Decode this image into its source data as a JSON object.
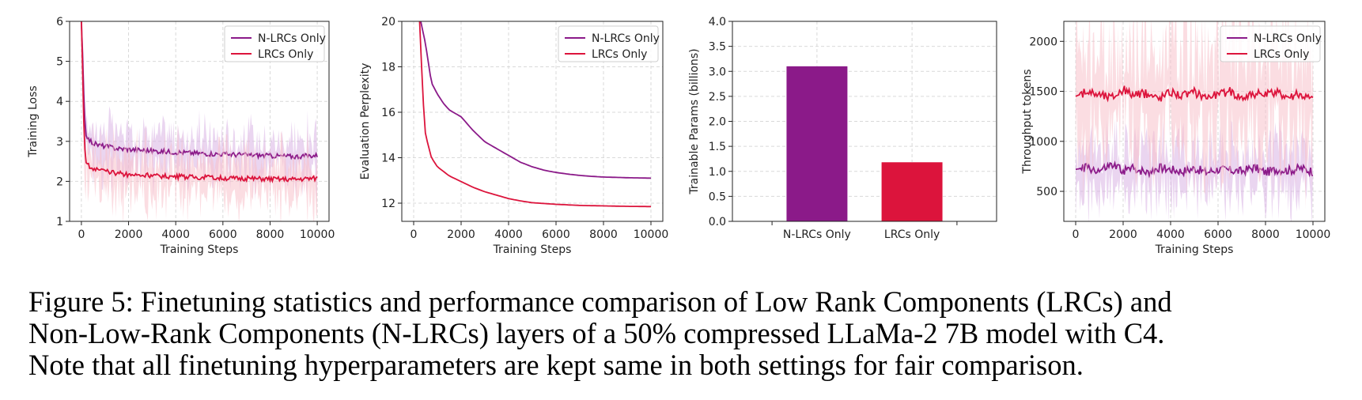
{
  "caption": "Figure 5: Finetuning statistics and performance comparison of Low Rank Components (LRCs) and\nNon-Low-Rank Components (N-LRCs) layers of a 50% compressed LLaMa-2 7B model with C4.\nNote that all finetuning hyperparameters are kept same in both settings for fair comparison.",
  "colors": {
    "n_lrcs": "#8b1a89",
    "lrcs": "#dc143c",
    "n_lrcs_band": "#d9b3e3",
    "lrcs_band": "#f7c1cb",
    "grid": "#d9d9d9"
  },
  "chart_data": [
    {
      "type": "line",
      "id": "training-loss",
      "xlabel": "Training Steps",
      "ylabel": "Training Loss",
      "xlim": [
        -500,
        10500
      ],
      "ylim": [
        1,
        6
      ],
      "xticks": [
        0,
        2000,
        4000,
        6000,
        8000,
        10000
      ],
      "yticks": [
        1,
        2,
        3,
        4,
        5,
        6
      ],
      "legend": "top-right",
      "grid": true,
      "series": [
        {
          "name": "N-LRCs Only",
          "color": "#8b1a89",
          "x": [
            0,
            50,
            100,
            150,
            200,
            300,
            400,
            500,
            750,
            1000,
            1500,
            2000,
            3000,
            4000,
            5000,
            6000,
            7000,
            8000,
            9000,
            10000
          ],
          "y": [
            6.0,
            5.2,
            4.2,
            3.5,
            3.2,
            3.05,
            3.0,
            2.95,
            2.9,
            2.88,
            2.82,
            2.8,
            2.76,
            2.73,
            2.7,
            2.68,
            2.66,
            2.64,
            2.62,
            2.65
          ],
          "band": [
            0.45,
            0.7
          ]
        },
        {
          "name": "LRCs Only",
          "color": "#dc143c",
          "x": [
            0,
            50,
            100,
            150,
            200,
            300,
            400,
            500,
            750,
            1000,
            1500,
            2000,
            3000,
            4000,
            5000,
            6000,
            7000,
            8000,
            9000,
            10000
          ],
          "y": [
            6.0,
            4.8,
            3.5,
            2.8,
            2.5,
            2.4,
            2.35,
            2.32,
            2.28,
            2.25,
            2.2,
            2.17,
            2.14,
            2.12,
            2.1,
            2.08,
            2.07,
            2.06,
            2.05,
            2.08
          ],
          "band": [
            0.45,
            0.8
          ]
        }
      ]
    },
    {
      "type": "line",
      "id": "eval-perplexity",
      "xlabel": "Training Steps",
      "ylabel": "Evaluation Perplexity",
      "xlim": [
        -500,
        10500
      ],
      "ylim": [
        11.2,
        20
      ],
      "xticks": [
        0,
        2000,
        4000,
        6000,
        8000,
        10000
      ],
      "yticks": [
        12,
        14,
        16,
        18,
        20
      ],
      "legend": "top-right",
      "grid": true,
      "series": [
        {
          "name": "N-LRCs Only",
          "color": "#8b1a89",
          "x": [
            300,
            500,
            750,
            1000,
            1250,
            1500,
            2000,
            2500,
            3000,
            3500,
            4000,
            4500,
            5000,
            5500,
            6000,
            6500,
            7000,
            7500,
            8000,
            9000,
            10000
          ],
          "y": [
            20.0,
            19.0,
            17.3,
            16.8,
            16.4,
            16.1,
            15.8,
            15.2,
            14.7,
            14.4,
            14.1,
            13.8,
            13.6,
            13.45,
            13.35,
            13.28,
            13.22,
            13.18,
            13.15,
            13.12,
            13.1
          ]
        },
        {
          "name": "LRCs Only",
          "color": "#dc143c",
          "x": [
            250,
            400,
            500,
            750,
            1000,
            1500,
            2000,
            2500,
            3000,
            3500,
            4000,
            4500,
            5000,
            6000,
            7000,
            8000,
            9000,
            10000
          ],
          "y": [
            20.0,
            16.5,
            15.0,
            14.0,
            13.6,
            13.2,
            12.95,
            12.7,
            12.5,
            12.35,
            12.2,
            12.1,
            12.02,
            11.95,
            11.9,
            11.88,
            11.86,
            11.85
          ]
        }
      ]
    },
    {
      "type": "bar",
      "id": "trainable-params",
      "ylabel": "Trainable Params (billions)",
      "categories": [
        "N-LRCs Only",
        "LRCs Only"
      ],
      "values": [
        3.1,
        1.18
      ],
      "colors": [
        "#8b1a89",
        "#dc143c"
      ],
      "ylim": [
        0,
        4
      ],
      "yticks": [
        0.0,
        0.5,
        1.0,
        1.5,
        2.0,
        2.5,
        3.0,
        3.5,
        4.0
      ],
      "grid": true
    },
    {
      "type": "line",
      "id": "throughput",
      "xlabel": "Training Steps",
      "ylabel": "Throughput tokens",
      "xlim": [
        -500,
        10500
      ],
      "ylim": [
        200,
        2200
      ],
      "xticks": [
        0,
        2000,
        4000,
        6000,
        8000,
        10000
      ],
      "yticks": [
        500,
        1000,
        1500,
        2000
      ],
      "legend": "top-right",
      "grid": true,
      "series": [
        {
          "name": "N-LRCs Only",
          "color": "#8b1a89",
          "x": [
            0,
            500,
            1000,
            1500,
            2000,
            2500,
            3000,
            3500,
            4000,
            4500,
            5000,
            5500,
            6000,
            6500,
            7000,
            7500,
            8000,
            8500,
            9000,
            9500,
            10000
          ],
          "y": [
            720,
            740,
            700,
            760,
            710,
            730,
            690,
            740,
            720,
            700,
            730,
            690,
            720,
            710,
            700,
            740,
            690,
            720,
            710,
            730,
            700
          ],
          "band": [
            250,
            300
          ]
        },
        {
          "name": "LRCs Only",
          "color": "#dc143c",
          "x": [
            0,
            500,
            1000,
            1500,
            2000,
            2500,
            3000,
            3500,
            4000,
            4500,
            5000,
            5500,
            6000,
            6500,
            7000,
            7500,
            8000,
            8500,
            9000,
            9500,
            10000
          ],
          "y": [
            1450,
            1500,
            1470,
            1440,
            1520,
            1460,
            1480,
            1430,
            1500,
            1460,
            1490,
            1450,
            1470,
            1500,
            1440,
            1480,
            1460,
            1490,
            1450,
            1470,
            1420
          ],
          "band": [
            600,
            550
          ]
        }
      ]
    }
  ]
}
